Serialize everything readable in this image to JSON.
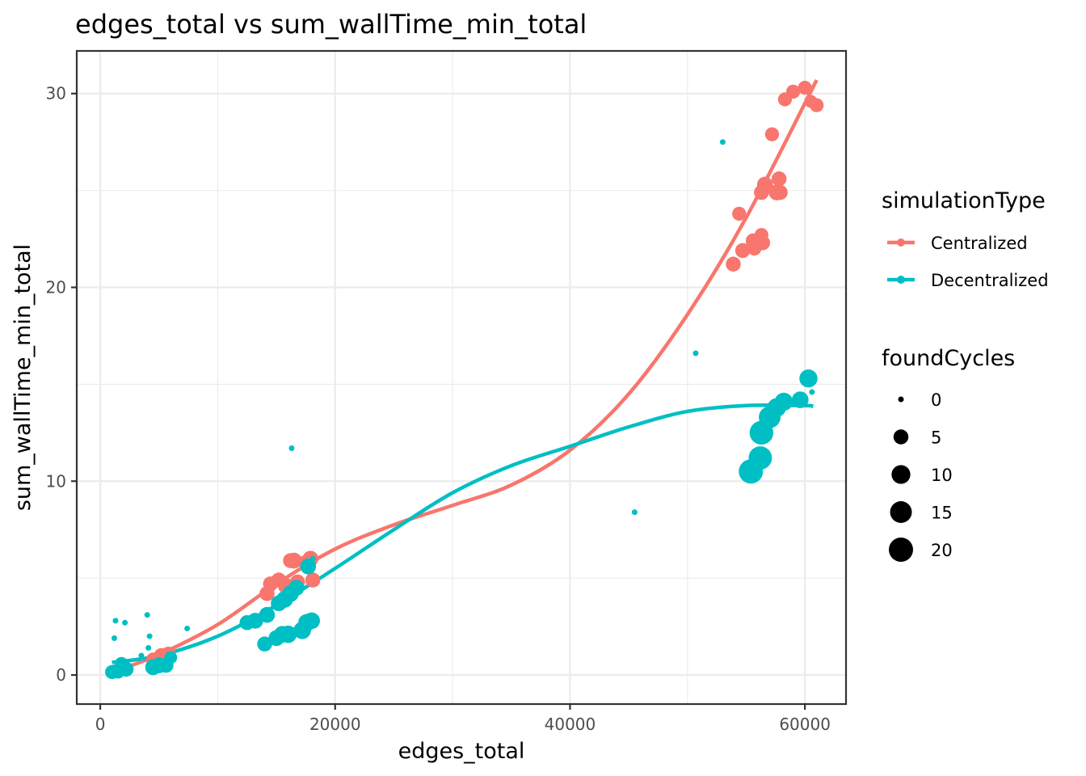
{
  "chart_data": {
    "type": "scatter",
    "title": "edges_total  vs  sum_wallTime_min_total",
    "xlabel": "edges_total",
    "ylabel": "sum_wallTime_min_total",
    "xlim": [
      -2000,
      63500
    ],
    "ylim": [
      -1.5,
      32.2
    ],
    "x_ticks": [
      0,
      20000,
      40000,
      60000
    ],
    "x_tick_labels": [
      "0",
      "20000",
      "40000",
      "60000"
    ],
    "y_ticks": [
      0,
      10,
      20,
      30
    ],
    "y_tick_labels": [
      "0",
      "10",
      "20",
      "30"
    ],
    "grid": true,
    "legend_position": "right",
    "legend": {
      "color_title": "simulationType",
      "size_title": "foundCycles",
      "size_levels": [
        {
          "label": "0",
          "value": 0
        },
        {
          "label": "5",
          "value": 5
        },
        {
          "label": "10",
          "value": 10
        },
        {
          "label": "15",
          "value": 15
        },
        {
          "label": "20",
          "value": 20
        }
      ]
    },
    "series": [
      {
        "name": "Centralized",
        "color": "#F8766D",
        "points": [
          {
            "x": 1200,
            "y": 0.2,
            "size": 3
          },
          {
            "x": 1800,
            "y": 0.3,
            "size": 3
          },
          {
            "x": 4500,
            "y": 0.8,
            "size": 4
          },
          {
            "x": 5200,
            "y": 1.0,
            "size": 5
          },
          {
            "x": 5800,
            "y": 1.1,
            "size": 4
          },
          {
            "x": 4800,
            "y": 0.6,
            "size": 4
          },
          {
            "x": 14200,
            "y": 4.2,
            "size": 5
          },
          {
            "x": 14500,
            "y": 4.7,
            "size": 5
          },
          {
            "x": 15200,
            "y": 4.9,
            "size": 5
          },
          {
            "x": 15800,
            "y": 4.6,
            "size": 6
          },
          {
            "x": 16500,
            "y": 5.9,
            "size": 6
          },
          {
            "x": 16800,
            "y": 4.8,
            "size": 5
          },
          {
            "x": 17500,
            "y": 5.8,
            "size": 5
          },
          {
            "x": 17900,
            "y": 6.0,
            "size": 6
          },
          {
            "x": 18100,
            "y": 4.9,
            "size": 5
          },
          {
            "x": 16200,
            "y": 5.9,
            "size": 5
          },
          {
            "x": 53900,
            "y": 21.2,
            "size": 5
          },
          {
            "x": 54400,
            "y": 23.8,
            "size": 4
          },
          {
            "x": 54700,
            "y": 21.9,
            "size": 5
          },
          {
            "x": 55600,
            "y": 22.4,
            "size": 5
          },
          {
            "x": 55700,
            "y": 22.0,
            "size": 4
          },
          {
            "x": 56300,
            "y": 22.7,
            "size": 4
          },
          {
            "x": 56400,
            "y": 22.3,
            "size": 5
          },
          {
            "x": 56300,
            "y": 24.9,
            "size": 5
          },
          {
            "x": 56600,
            "y": 25.3,
            "size": 6
          },
          {
            "x": 57200,
            "y": 27.9,
            "size": 4
          },
          {
            "x": 57600,
            "y": 24.9,
            "size": 6
          },
          {
            "x": 57800,
            "y": 25.6,
            "size": 5
          },
          {
            "x": 57900,
            "y": 24.9,
            "size": 5
          },
          {
            "x": 58300,
            "y": 29.7,
            "size": 4
          },
          {
            "x": 59000,
            "y": 30.1,
            "size": 4
          },
          {
            "x": 60000,
            "y": 30.3,
            "size": 4
          },
          {
            "x": 60500,
            "y": 29.6,
            "size": 3
          },
          {
            "x": 61000,
            "y": 29.4,
            "size": 4
          }
        ],
        "trend": [
          [
            1500,
            0.25
          ],
          [
            5000,
            1.05
          ],
          [
            10000,
            2.6
          ],
          [
            15000,
            4.7
          ],
          [
            20000,
            6.5
          ],
          [
            25000,
            7.75
          ],
          [
            30000,
            8.75
          ],
          [
            35000,
            9.8
          ],
          [
            40000,
            11.6
          ],
          [
            45000,
            14.5
          ],
          [
            50000,
            18.6
          ],
          [
            55000,
            23.6
          ],
          [
            61000,
            30.7
          ]
        ]
      },
      {
        "name": "Decentralized",
        "color": "#00BFC4",
        "points": [
          {
            "x": 1000,
            "y": 0.15,
            "size": 4
          },
          {
            "x": 1500,
            "y": 0.2,
            "size": 5
          },
          {
            "x": 2200,
            "y": 0.3,
            "size": 5
          },
          {
            "x": 1800,
            "y": 0.6,
            "size": 3
          },
          {
            "x": 1200,
            "y": 1.9,
            "size": 0
          },
          {
            "x": 1300,
            "y": 2.8,
            "size": 0
          },
          {
            "x": 2100,
            "y": 2.7,
            "size": 0
          },
          {
            "x": 4000,
            "y": 3.1,
            "size": 0
          },
          {
            "x": 4200,
            "y": 2.0,
            "size": 0
          },
          {
            "x": 3500,
            "y": 1.0,
            "size": 0
          },
          {
            "x": 4100,
            "y": 1.4,
            "size": 0
          },
          {
            "x": 7400,
            "y": 2.4,
            "size": 0
          },
          {
            "x": 4500,
            "y": 0.4,
            "size": 6
          },
          {
            "x": 5000,
            "y": 0.5,
            "size": 6
          },
          {
            "x": 5600,
            "y": 0.5,
            "size": 5
          },
          {
            "x": 6000,
            "y": 0.9,
            "size": 3
          },
          {
            "x": 12500,
            "y": 2.7,
            "size": 5
          },
          {
            "x": 13200,
            "y": 2.8,
            "size": 6
          },
          {
            "x": 14200,
            "y": 3.1,
            "size": 6
          },
          {
            "x": 14000,
            "y": 1.6,
            "size": 5
          },
          {
            "x": 15000,
            "y": 1.9,
            "size": 6
          },
          {
            "x": 15500,
            "y": 2.1,
            "size": 7
          },
          {
            "x": 16000,
            "y": 2.1,
            "size": 8
          },
          {
            "x": 15200,
            "y": 3.7,
            "size": 6
          },
          {
            "x": 15700,
            "y": 3.9,
            "size": 7
          },
          {
            "x": 16200,
            "y": 4.2,
            "size": 7
          },
          {
            "x": 16700,
            "y": 4.5,
            "size": 6
          },
          {
            "x": 17200,
            "y": 2.3,
            "size": 8
          },
          {
            "x": 17600,
            "y": 2.7,
            "size": 8
          },
          {
            "x": 18000,
            "y": 2.8,
            "size": 7
          },
          {
            "x": 17700,
            "y": 5.6,
            "size": 6
          },
          {
            "x": 18100,
            "y": 6.0,
            "size": 0
          },
          {
            "x": 16300,
            "y": 11.7,
            "size": 0
          },
          {
            "x": 45500,
            "y": 8.4,
            "size": 0
          },
          {
            "x": 50700,
            "y": 16.6,
            "size": 0
          },
          {
            "x": 53000,
            "y": 27.5,
            "size": 0
          },
          {
            "x": 55400,
            "y": 10.5,
            "size": 20
          },
          {
            "x": 56200,
            "y": 11.2,
            "size": 18
          },
          {
            "x": 56300,
            "y": 12.5,
            "size": 19
          },
          {
            "x": 57000,
            "y": 13.3,
            "size": 15
          },
          {
            "x": 57600,
            "y": 13.8,
            "size": 10
          },
          {
            "x": 58200,
            "y": 14.1,
            "size": 9
          },
          {
            "x": 59600,
            "y": 14.2,
            "size": 7
          },
          {
            "x": 60300,
            "y": 15.3,
            "size": 9
          },
          {
            "x": 60600,
            "y": 14.6,
            "size": 0
          }
        ],
        "trend": [
          [
            1000,
            0.65
          ],
          [
            5000,
            1.0
          ],
          [
            10000,
            2.0
          ],
          [
            15000,
            3.6
          ],
          [
            20000,
            5.5
          ],
          [
            25000,
            7.5
          ],
          [
            30000,
            9.4
          ],
          [
            35000,
            10.8
          ],
          [
            40000,
            11.8
          ],
          [
            45000,
            12.8
          ],
          [
            50000,
            13.6
          ],
          [
            55000,
            13.9
          ],
          [
            60000,
            13.9
          ],
          [
            60700,
            13.85
          ]
        ]
      }
    ]
  }
}
